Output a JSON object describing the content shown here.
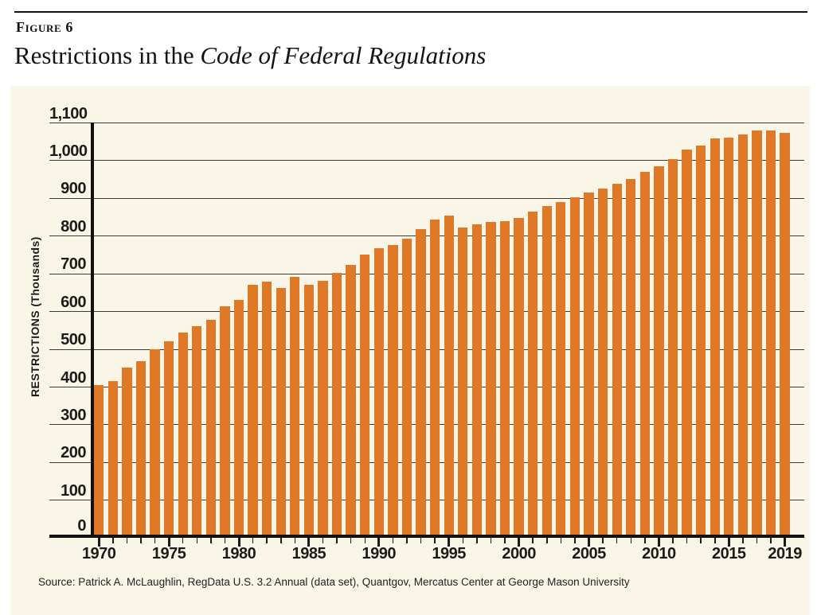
{
  "header": {
    "figure_label": "Figure 6",
    "title_regular": "Restrictions in the ",
    "title_italic": "Code of Federal Regulations"
  },
  "chart_data": {
    "type": "bar",
    "title": "Restrictions in the Code of Federal Regulations",
    "ylabel": "RESTRICTIONS (Thousands)",
    "xlabel": "",
    "ylim": [
      0,
      1100
    ],
    "ytick_step": 100,
    "grid": true,
    "legend": "none",
    "x": [
      1970,
      1971,
      1972,
      1973,
      1974,
      1975,
      1976,
      1977,
      1978,
      1979,
      1980,
      1981,
      1982,
      1983,
      1984,
      1985,
      1986,
      1987,
      1988,
      1989,
      1990,
      1991,
      1992,
      1993,
      1994,
      1995,
      1996,
      1997,
      1998,
      1999,
      2000,
      2001,
      2002,
      2003,
      2004,
      2005,
      2006,
      2007,
      2008,
      2009,
      2010,
      2011,
      2012,
      2013,
      2014,
      2015,
      2016,
      2017,
      2018,
      2019
    ],
    "values": [
      404,
      415,
      450,
      468,
      500,
      520,
      543,
      560,
      578,
      613,
      630,
      670,
      678,
      661,
      691,
      670,
      681,
      701,
      723,
      750,
      768,
      775,
      792,
      817,
      842,
      853,
      822,
      831,
      836,
      838,
      848,
      864,
      879,
      889,
      902,
      914,
      926,
      937,
      950,
      969,
      985,
      1003,
      1028,
      1040,
      1057,
      1059,
      1069,
      1080,
      1080,
      1072
    ],
    "x_major_tick_labels": [
      "1970",
      "1975",
      "1980",
      "1985",
      "1990",
      "1995",
      "2000",
      "2005",
      "2010",
      "2015",
      "2019"
    ],
    "x_major_tick_years": [
      1970,
      1975,
      1980,
      1985,
      1990,
      1995,
      2000,
      2005,
      2010,
      2015,
      2019
    ]
  },
  "footer": {
    "source": "Source: Patrick A. McLaughlin, RegData U.S. 3.2 Annual (data set), Quantgov, Mercatus Center at George Mason University"
  },
  "colors": {
    "panel_background": "#FAF6E7",
    "bar": "#DF7927",
    "axis": "#111111",
    "gridline": "#3B3B3B",
    "tick": "#1b1b1b",
    "text": "#1A1A1A"
  }
}
